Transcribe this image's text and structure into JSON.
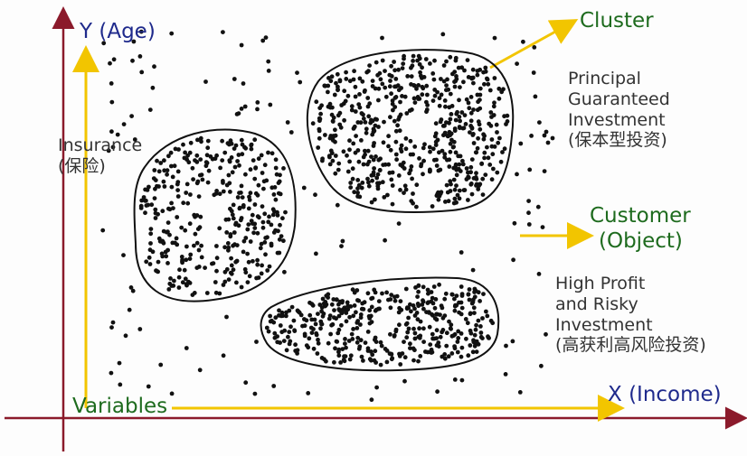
{
  "axes": {
    "y_label": "Y (Age)",
    "x_label": "X (Income)",
    "variables_label": "Variables"
  },
  "labels": {
    "cluster": "Cluster",
    "customer_line1": "Customer",
    "customer_line2": "(Object)",
    "insurance_line1": "Insurance",
    "insurance_line2": "(保险)",
    "principal_line1": "Principal",
    "principal_line2": "Guaranteed",
    "principal_line3": "Investment",
    "principal_line4": "(保本型投资)",
    "highprofit_line1": "High Profit",
    "highprofit_line2": "and Risky",
    "highprofit_line3": "Investment",
    "highprofit_line4": "(高获利高风险投资)"
  },
  "colors": {
    "axis": "#8b1a2b",
    "arrow": "#f2c500",
    "blue_text": "#1f2a8c",
    "green_text": "#1e6b1e",
    "dot": "#111111"
  },
  "clusters": [
    {
      "name": "insurance-cluster",
      "label": "Insurance"
    },
    {
      "name": "principal-cluster",
      "label": "Principal Guaranteed Investment"
    },
    {
      "name": "highprofit-cluster",
      "label": "High Profit and Risky Investment"
    }
  ]
}
